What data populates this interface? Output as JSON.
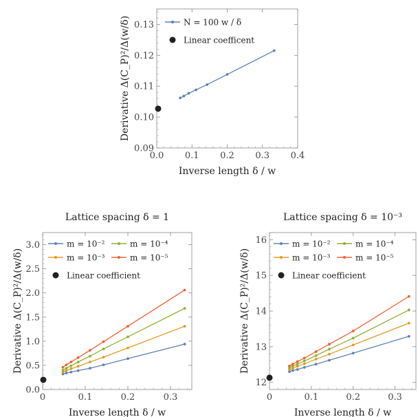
{
  "colors": {
    "blue": "#5e81b5",
    "orange": "#e19c24",
    "green": "#8fb032",
    "red": "#eb6235",
    "dot": "#222222"
  },
  "chart_data": [
    {
      "type": "line",
      "title": "",
      "xlabel": "Inverse length δ / w",
      "ylabel": "Derivative Δ(C_P)²/Δ(w/δ)",
      "xlim": [
        0,
        0.4
      ],
      "ylim": [
        0.09,
        0.135
      ],
      "xticks": [
        "0.0",
        "0.1",
        "0.2",
        "0.3",
        "0.4"
      ],
      "yticks": [
        "0.09",
        "0.10",
        "0.11",
        "0.12",
        "0.13"
      ],
      "legend_position": "top-left",
      "series": [
        {
          "name": "N = 100 w / δ",
          "color": "#5e81b5",
          "x": [
            0.0667,
            0.0769,
            0.0909,
            0.1111,
            0.1429,
            0.2,
            0.3333
          ],
          "y": [
            0.1062,
            0.1068,
            0.1077,
            0.1088,
            0.1105,
            0.1138,
            0.1215
          ]
        }
      ],
      "linear_coefficient": {
        "label": "Linear coefficent",
        "x": 0,
        "y": 0.1027
      }
    },
    {
      "type": "line",
      "title": "Lattice spacing δ = 1",
      "xlabel": "Inverse length δ / w",
      "ylabel": "Derivative Δ(C_P)²/Δ(w/δ)",
      "xlim": [
        0,
        0.35
      ],
      "ylim": [
        0,
        3.25
      ],
      "xticks": [
        "0",
        "0.1",
        "0.2",
        "0.3"
      ],
      "yticks": [
        "0.0",
        "0.5",
        "1.0",
        "1.5",
        "2.0",
        "2.5",
        "3.0"
      ],
      "legend_position": "top-left",
      "series": [
        {
          "name": "m = 10⁻²",
          "color": "#5e81b5",
          "x": [
            0.0476,
            0.0556,
            0.0667,
            0.0833,
            0.1111,
            0.1429,
            0.2,
            0.3333
          ],
          "y": [
            0.32,
            0.34,
            0.36,
            0.39,
            0.44,
            0.51,
            0.64,
            0.94
          ]
        },
        {
          "name": "m = 10⁻³",
          "color": "#e19c24",
          "x": [
            0.0476,
            0.0556,
            0.0667,
            0.0833,
            0.1111,
            0.1429,
            0.2,
            0.3333
          ],
          "y": [
            0.36,
            0.39,
            0.43,
            0.48,
            0.57,
            0.67,
            0.86,
            1.31
          ]
        },
        {
          "name": "m = 10⁻⁴",
          "color": "#8fb032",
          "x": [
            0.0476,
            0.0556,
            0.0667,
            0.0833,
            0.1111,
            0.1429,
            0.2,
            0.3333
          ],
          "y": [
            0.4,
            0.44,
            0.49,
            0.57,
            0.69,
            0.84,
            1.09,
            1.68
          ]
        },
        {
          "name": "m = 10⁻⁵",
          "color": "#eb6235",
          "x": [
            0.0476,
            0.0556,
            0.0667,
            0.0833,
            0.1111,
            0.1429,
            0.2,
            0.3333
          ],
          "y": [
            0.46,
            0.51,
            0.57,
            0.66,
            0.81,
            0.99,
            1.31,
            2.06
          ]
        }
      ],
      "linear_coefficient": {
        "label": "Linear coefficient",
        "x": 0,
        "y": 0.2
      }
    },
    {
      "type": "line",
      "title": "Lattice spacing δ = 10⁻³",
      "xlabel": "Inverse length δ / w",
      "ylabel": "Derivative Δ(C_P)²/Δ(w/δ)",
      "xlim": [
        0,
        0.35
      ],
      "ylim": [
        11.8,
        16.2
      ],
      "xticks": [
        "0",
        "0.1",
        "0.2",
        "0.3"
      ],
      "yticks": [
        "12",
        "13",
        "14",
        "15",
        "16"
      ],
      "legend_position": "top-left",
      "series": [
        {
          "name": "m = 10⁻²",
          "color": "#5e81b5",
          "x": [
            0.0476,
            0.0556,
            0.0667,
            0.0833,
            0.1111,
            0.1429,
            0.2,
            0.3333
          ],
          "y": [
            12.3,
            12.33,
            12.36,
            12.42,
            12.51,
            12.62,
            12.82,
            13.29
          ]
        },
        {
          "name": "m = 10⁻³",
          "color": "#e19c24",
          "x": [
            0.0476,
            0.0556,
            0.0667,
            0.0833,
            0.1111,
            0.1429,
            0.2,
            0.3333
          ],
          "y": [
            12.36,
            12.39,
            12.45,
            12.52,
            12.65,
            12.79,
            13.05,
            13.66
          ]
        },
        {
          "name": "m = 10⁻⁴",
          "color": "#8fb032",
          "x": [
            0.0476,
            0.0556,
            0.0667,
            0.0833,
            0.1111,
            0.1429,
            0.2,
            0.3333
          ],
          "y": [
            12.41,
            12.45,
            12.51,
            12.6,
            12.75,
            12.93,
            13.24,
            14.03
          ]
        },
        {
          "name": "m = 10⁻⁵",
          "color": "#eb6235",
          "x": [
            0.0476,
            0.0556,
            0.0667,
            0.0833,
            0.1111,
            0.1429,
            0.2,
            0.3333
          ],
          "y": [
            12.46,
            12.51,
            12.58,
            12.68,
            12.86,
            13.07,
            13.44,
            14.41
          ]
        }
      ],
      "linear_coefficient": {
        "label": "Linear coefficient",
        "x": 0,
        "y": 12.13
      }
    }
  ]
}
